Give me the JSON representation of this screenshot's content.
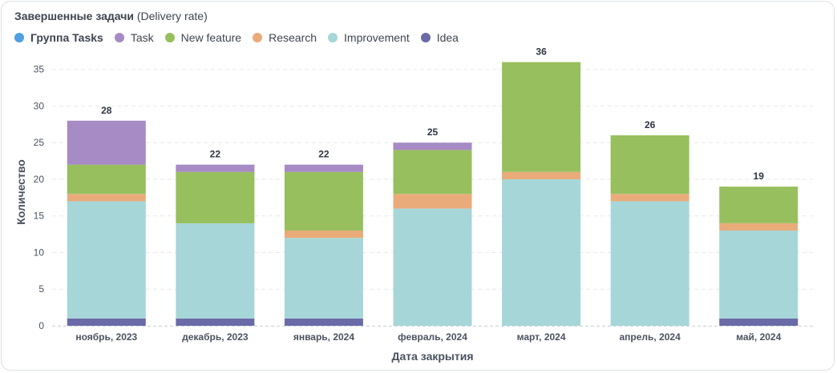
{
  "chart_data": {
    "type": "bar",
    "stacked": true,
    "title": "Завершенные задачи",
    "title_suffix": "(Delivery rate)",
    "xlabel": "Дата закрытия",
    "ylabel": "Количество",
    "ylim": [
      0,
      35
    ],
    "yticks": [
      "0",
      "5",
      "10",
      "15",
      "20",
      "25",
      "30",
      "35"
    ],
    "categories": [
      "ноябрь, 2023",
      "декабрь, 2023",
      "январь, 2024",
      "февраль, 2024",
      "март, 2024",
      "апрель, 2024",
      "май, 2024"
    ],
    "totals": [
      "28",
      "22",
      "22",
      "25",
      "36",
      "26",
      "19"
    ],
    "series": [
      {
        "name": "Idea",
        "color": "#6a6aa8",
        "values": [
          1,
          1,
          1,
          0,
          0,
          0,
          1
        ]
      },
      {
        "name": "Improvement",
        "color": "#a6d6d8",
        "values": [
          16,
          13,
          11,
          16,
          20,
          17,
          12
        ]
      },
      {
        "name": "Research",
        "color": "#e9ab7a",
        "values": [
          1,
          0,
          1,
          2,
          1,
          1,
          1
        ]
      },
      {
        "name": "New feature",
        "color": "#97bf5e",
        "values": [
          4,
          7,
          8,
          6,
          15,
          8,
          5
        ]
      },
      {
        "name": "Task",
        "color": "#a68bc4",
        "values": [
          6,
          1,
          1,
          1,
          0,
          0,
          0
        ]
      }
    ]
  },
  "legend": [
    {
      "label": "Группа Tasks",
      "color": "#509ee3"
    },
    {
      "label": "Task",
      "color": "#a68bc4"
    },
    {
      "label": "New feature",
      "color": "#97bf5e"
    },
    {
      "label": "Research",
      "color": "#e9ab7a"
    },
    {
      "label": "Improvement",
      "color": "#a6d6d8"
    },
    {
      "label": "Idea",
      "color": "#6a6aa8"
    }
  ]
}
